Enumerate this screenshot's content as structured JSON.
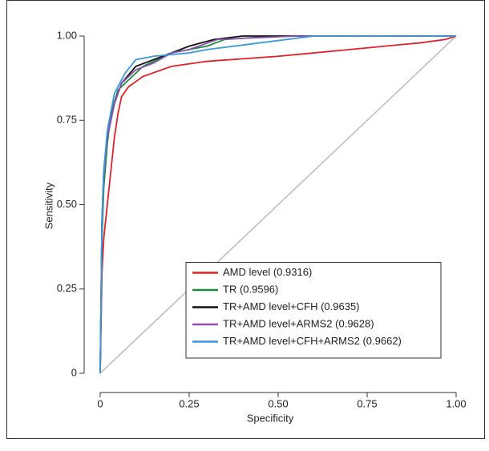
{
  "chart_data": {
    "type": "line",
    "x_label": "Specificity",
    "y_label": "Sensitivity",
    "xlim": [
      -0.045,
      1.0
    ],
    "ylim": [
      -0.057,
      1.0
    ],
    "xticks": [
      0,
      {
        "value": 0.25,
        "label": "0.25"
      },
      {
        "value": 0.5,
        "label": "0.50"
      },
      {
        "value": 0.75,
        "label": "0.75"
      },
      {
        "value": 1,
        "label": "1.00"
      }
    ],
    "yticks": [
      0,
      {
        "value": 0.25,
        "label": "0.25"
      },
      {
        "value": 0.5,
        "label": "0.50"
      },
      {
        "value": 0.75,
        "label": "0.75"
      },
      {
        "value": 1,
        "label": "1.00"
      }
    ],
    "diagonal": true,
    "legend": "bottom-right",
    "series": [
      {
        "name": "AMD level (0.9316)",
        "color": "#e0202a",
        "x": [
          0,
          0.005,
          0.01,
          0.02,
          0.03,
          0.04,
          0.05,
          0.06,
          0.08,
          0.12,
          0.2,
          0.3,
          0.5,
          0.7,
          0.9,
          0.97,
          1
        ],
        "values": [
          0,
          0.3,
          0.4,
          0.5,
          0.6,
          0.7,
          0.77,
          0.82,
          0.85,
          0.88,
          0.91,
          0.925,
          0.94,
          0.96,
          0.98,
          0.99,
          1
        ]
      },
      {
        "name": "TR (0.9596)",
        "color": "#1a8a3a",
        "x": [
          0,
          0.005,
          0.01,
          0.02,
          0.03,
          0.05,
          0.08,
          0.12,
          0.2,
          0.3,
          0.35,
          0.5,
          1
        ],
        "values": [
          0,
          0.4,
          0.55,
          0.68,
          0.77,
          0.84,
          0.87,
          0.91,
          0.95,
          0.97,
          0.99,
          1,
          1
        ]
      },
      {
        "name": "TR+AMD level+CFH (0.9635)",
        "color": "#111111",
        "x": [
          0,
          0.005,
          0.01,
          0.02,
          0.04,
          0.06,
          0.1,
          0.15,
          0.2,
          0.25,
          0.32,
          0.4,
          1
        ],
        "values": [
          0,
          0.45,
          0.6,
          0.7,
          0.8,
          0.86,
          0.91,
          0.93,
          0.95,
          0.97,
          0.99,
          1,
          1
        ]
      },
      {
        "name": "TR+AMD level+ARMS2 (0.9628)",
        "color": "#8a4fb0",
        "x": [
          0,
          0.005,
          0.01,
          0.02,
          0.04,
          0.06,
          0.1,
          0.15,
          0.2,
          0.25,
          0.33,
          0.55,
          1
        ],
        "values": [
          0,
          0.44,
          0.58,
          0.7,
          0.8,
          0.86,
          0.9,
          0.92,
          0.95,
          0.96,
          0.99,
          1,
          1
        ]
      },
      {
        "name": "TR+AMD level+CFH+ARMS2 (0.9662)",
        "color": "#3a9ad8",
        "x": [
          0,
          0.005,
          0.01,
          0.02,
          0.04,
          0.07,
          0.1,
          0.15,
          0.25,
          0.3,
          0.45,
          0.6,
          1
        ],
        "values": [
          0,
          0.45,
          0.6,
          0.72,
          0.83,
          0.89,
          0.93,
          0.94,
          0.95,
          0.96,
          0.98,
          1,
          1
        ]
      }
    ]
  }
}
